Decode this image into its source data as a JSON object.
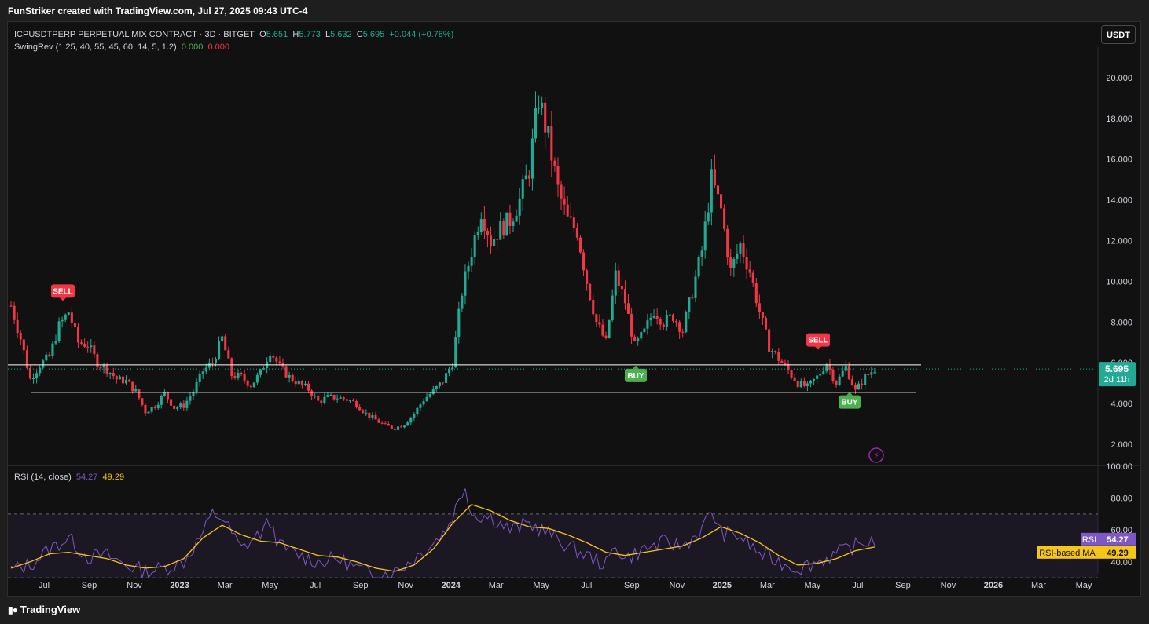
{
  "header": {
    "credit": "FunStriker created with TradingView.com, Jul 27, 2025 09:43 UTC-4"
  },
  "legend": {
    "symbol": "ICPUSDTPERP PERPETUAL MIX CONTRACT · 3D · BITGET",
    "o_label": "O",
    "o_value": "5.651",
    "h_label": "H",
    "h_value": "5.773",
    "l_label": "L",
    "l_value": "5.632",
    "c_label": "C",
    "c_value": "5.695",
    "change": "+0.044 (+0.78%)",
    "indicator": "SwingRev (1.25, 40, 55, 45, 60, 14, 5, 1.2)",
    "ind_v1": "0.000",
    "ind_v2": "0.000"
  },
  "currency_button": "USDT",
  "price_badge": {
    "price": "5.695",
    "countdown": "2d 11h"
  },
  "rsi_legend": {
    "name": "RSI (14, close)",
    "rsi": "54.27",
    "ma": "49.29"
  },
  "rsi_badges": {
    "rsi_label": "RSI",
    "rsi_value": "54.27",
    "ma_label": "RSI-based MA",
    "ma_value": "49.29"
  },
  "footer": {
    "brand": "TradingView"
  },
  "colors": {
    "up": "#22ab94",
    "down": "#f23645",
    "rsi": "#7e57c2",
    "rsi_ma": "#f5c518",
    "buy": "#4caf50",
    "sell": "#f23645"
  },
  "chart_data": [
    {
      "type": "candlestick",
      "price_axis": {
        "ticks": [
          2.0,
          4.0,
          6.0,
          8.0,
          10.0,
          12.0,
          14.0,
          16.0,
          18.0,
          20.0
        ],
        "tick_labels": [
          "2.000",
          "4.000",
          "6.000",
          "8.000",
          "10.000",
          "12.000",
          "14.000",
          "16.000",
          "18.000",
          "20.000"
        ],
        "range": [
          1.0,
          21.5
        ]
      },
      "time_axis": {
        "labels": [
          "Jul",
          "Sep",
          "Nov",
          "2023",
          "Mar",
          "May",
          "Jul",
          "Sep",
          "Nov",
          "2024",
          "Mar",
          "May",
          "Jul",
          "Sep",
          "Nov",
          "2025",
          "Mar",
          "May",
          "Jul",
          "Sep",
          "Nov",
          "2026",
          "Mar",
          "May"
        ]
      },
      "close_series_approx": [
        [
          0,
          8.8
        ],
        [
          3,
          7.2
        ],
        [
          6,
          5.2
        ],
        [
          9,
          5.9
        ],
        [
          12,
          6.3
        ],
        [
          15,
          7.8
        ],
        [
          18,
          8.5
        ],
        [
          21,
          7.0
        ],
        [
          24,
          6.9
        ],
        [
          27,
          6.0
        ],
        [
          30,
          5.7
        ],
        [
          33,
          5.2
        ],
        [
          36,
          5.1
        ],
        [
          39,
          4.6
        ],
        [
          42,
          3.6
        ],
        [
          45,
          3.9
        ],
        [
          48,
          4.5
        ],
        [
          51,
          3.8
        ],
        [
          54,
          3.9
        ],
        [
          57,
          4.6
        ],
        [
          60,
          5.6
        ],
        [
          63,
          6.0
        ],
        [
          66,
          7.2
        ],
        [
          69,
          5.4
        ],
        [
          72,
          5.3
        ],
        [
          75,
          4.9
        ],
        [
          78,
          5.5
        ],
        [
          81,
          6.6
        ],
        [
          84,
          5.8
        ],
        [
          87,
          5.3
        ],
        [
          90,
          5.0
        ],
        [
          93,
          4.7
        ],
        [
          96,
          4.1
        ],
        [
          99,
          4.3
        ],
        [
          102,
          4.3
        ],
        [
          105,
          4.2
        ],
        [
          108,
          4.0
        ],
        [
          111,
          3.5
        ],
        [
          114,
          3.2
        ],
        [
          117,
          2.9
        ],
        [
          120,
          2.8
        ],
        [
          123,
          3.0
        ],
        [
          126,
          3.5
        ],
        [
          129,
          4.2
        ],
        [
          132,
          4.6
        ],
        [
          135,
          5.1
        ],
        [
          138,
          6.0
        ],
        [
          141,
          9.5
        ],
        [
          144,
          11.5
        ],
        [
          147,
          13.5
        ],
        [
          150,
          12.0
        ],
        [
          153,
          12.6
        ],
        [
          156,
          13.0
        ],
        [
          159,
          14.0
        ],
        [
          162,
          15.5
        ],
        [
          165,
          19.0
        ],
        [
          168,
          17.0
        ],
        [
          171,
          14.5
        ],
        [
          174,
          13.0
        ],
        [
          177,
          12.5
        ],
        [
          180,
          10.0
        ],
        [
          183,
          8.0
        ],
        [
          186,
          7.0
        ],
        [
          189,
          10.3
        ],
        [
          192,
          9.0
        ],
        [
          195,
          6.8
        ],
        [
          198,
          7.5
        ],
        [
          201,
          8.6
        ],
        [
          204,
          8.0
        ],
        [
          207,
          8.3
        ],
        [
          210,
          7.6
        ],
        [
          213,
          9.5
        ],
        [
          216,
          11.5
        ],
        [
          219,
          15.0
        ],
        [
          222,
          13.5
        ],
        [
          225,
          10.5
        ],
        [
          228,
          11.8
        ],
        [
          231,
          10.5
        ],
        [
          234,
          8.5
        ],
        [
          237,
          6.8
        ],
        [
          240,
          6.2
        ],
        [
          243,
          5.6
        ],
        [
          246,
          5.0
        ],
        [
          249,
          4.8
        ],
        [
          252,
          5.3
        ],
        [
          255,
          6.0
        ],
        [
          258,
          5.0
        ],
        [
          261,
          5.8
        ],
        [
          264,
          4.6
        ],
        [
          267,
          5.3
        ],
        [
          270,
          5.7
        ]
      ],
      "horizontal_levels": [
        5.9,
        4.55
      ],
      "signals": [
        {
          "label": "SELL",
          "at": "Jul 2022",
          "price_level": 9.0
        },
        {
          "label": "BUY",
          "at": "Aug 2024",
          "price_level": 5.9
        },
        {
          "label": "SELL",
          "at": "Jun 2025",
          "price_level": 6.6
        },
        {
          "label": "BUY",
          "at": "Jun 2025",
          "price_level": 4.6
        }
      ],
      "last_price": 5.695
    },
    {
      "type": "line",
      "name": "RSI (14, close)",
      "y_axis": {
        "ticks": [
          40,
          60,
          80,
          100
        ],
        "tick_labels": [
          "40.00",
          "60.00",
          "80.00",
          "100.00"
        ],
        "range": [
          33,
          100
        ]
      },
      "bands": {
        "upper": 70,
        "middle": 50,
        "lower": 30
      },
      "rsi_approx": [
        [
          0,
          35
        ],
        [
          6,
          38
        ],
        [
          12,
          48
        ],
        [
          18,
          55
        ],
        [
          24,
          43
        ],
        [
          30,
          44
        ],
        [
          36,
          38
        ],
        [
          42,
          34
        ],
        [
          48,
          36
        ],
        [
          54,
          40
        ],
        [
          60,
          58
        ],
        [
          63,
          70
        ],
        [
          66,
          68
        ],
        [
          72,
          48
        ],
        [
          78,
          58
        ],
        [
          81,
          65
        ],
        [
          84,
          50
        ],
        [
          90,
          44
        ],
        [
          96,
          40
        ],
        [
          102,
          42
        ],
        [
          108,
          36
        ],
        [
          114,
          32
        ],
        [
          120,
          34
        ],
        [
          126,
          42
        ],
        [
          132,
          52
        ],
        [
          136,
          60
        ],
        [
          140,
          78
        ],
        [
          142,
          88
        ],
        [
          144,
          70
        ],
        [
          150,
          68
        ],
        [
          156,
          60
        ],
        [
          162,
          64
        ],
        [
          168,
          58
        ],
        [
          174,
          50
        ],
        [
          180,
          44
        ],
        [
          186,
          38
        ],
        [
          189,
          50
        ],
        [
          192,
          42
        ],
        [
          198,
          48
        ],
        [
          204,
          52
        ],
        [
          210,
          50
        ],
        [
          216,
          60
        ],
        [
          219,
          72
        ],
        [
          222,
          58
        ],
        [
          228,
          56
        ],
        [
          234,
          45
        ],
        [
          240,
          40
        ],
        [
          246,
          36
        ],
        [
          252,
          40
        ],
        [
          258,
          45
        ],
        [
          264,
          50
        ],
        [
          270,
          54.27
        ]
      ],
      "ma_approx": [
        [
          0,
          36
        ],
        [
          6,
          40
        ],
        [
          12,
          45
        ],
        [
          18,
          46
        ],
        [
          24,
          44
        ],
        [
          30,
          42
        ],
        [
          36,
          38
        ],
        [
          42,
          36
        ],
        [
          48,
          37
        ],
        [
          54,
          42
        ],
        [
          60,
          55
        ],
        [
          66,
          63
        ],
        [
          72,
          57
        ],
        [
          78,
          53
        ],
        [
          84,
          52
        ],
        [
          90,
          48
        ],
        [
          96,
          44
        ],
        [
          102,
          43
        ],
        [
          108,
          40
        ],
        [
          114,
          36
        ],
        [
          120,
          34
        ],
        [
          126,
          38
        ],
        [
          132,
          48
        ],
        [
          138,
          64
        ],
        [
          144,
          76
        ],
        [
          150,
          72
        ],
        [
          156,
          66
        ],
        [
          162,
          62
        ],
        [
          168,
          61
        ],
        [
          174,
          57
        ],
        [
          180,
          52
        ],
        [
          186,
          46
        ],
        [
          192,
          44
        ],
        [
          198,
          46
        ],
        [
          204,
          48
        ],
        [
          210,
          50
        ],
        [
          216,
          55
        ],
        [
          222,
          62
        ],
        [
          228,
          58
        ],
        [
          234,
          52
        ],
        [
          240,
          44
        ],
        [
          246,
          38
        ],
        [
          252,
          39
        ],
        [
          258,
          42
        ],
        [
          264,
          47
        ],
        [
          270,
          49.29
        ]
      ]
    }
  ]
}
